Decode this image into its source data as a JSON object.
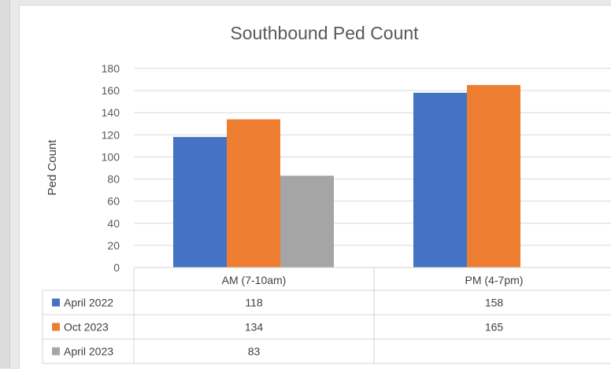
{
  "chart_data": {
    "type": "bar",
    "title": "Southbound Ped Count",
    "ylabel": "Ped Count",
    "xlabel": "",
    "categories": [
      "AM (7-10am)",
      "PM (4-7pm)"
    ],
    "ylim": [
      0,
      180
    ],
    "yticks": [
      0,
      20,
      40,
      60,
      80,
      100,
      120,
      140,
      160,
      180
    ],
    "grid": true,
    "legend": "data-table-below",
    "series": [
      {
        "name": "April 2022",
        "color": "#4472C4",
        "values": [
          118,
          158
        ],
        "labels": [
          "118",
          "158"
        ]
      },
      {
        "name": "Oct 2023",
        "color": "#ED7D31",
        "values": [
          134,
          165
        ],
        "labels": [
          "134",
          "165"
        ]
      },
      {
        "name": "April 2023",
        "color": "#A5A5A5",
        "values": [
          83,
          null
        ],
        "labels": [
          "83",
          ""
        ]
      }
    ]
  }
}
